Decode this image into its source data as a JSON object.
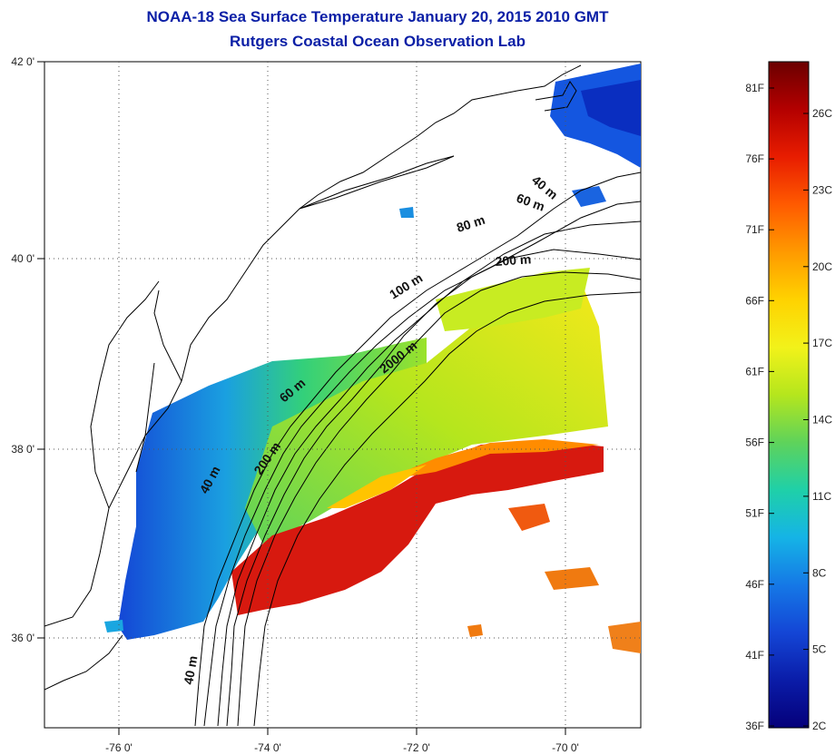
{
  "title": "NOAA-18 Sea Surface Temperature January 20, 2015 2010 GMT",
  "subtitle": "Rutgers Coastal Ocean Observation Lab",
  "axes": {
    "lon_ticks": [
      "-76 0'",
      "-74 0'",
      "-72 0'",
      "-70 0'"
    ],
    "lat_ticks": [
      "42 0'",
      "40 0'",
      "38 0'",
      "36 0'"
    ]
  },
  "depth_contours": [
    {
      "label": "40 m"
    },
    {
      "label": "60 m"
    },
    {
      "label": "80 m"
    },
    {
      "label": "200 m"
    },
    {
      "label": "100 m"
    },
    {
      "label": "2000 m"
    },
    {
      "label": "60 m"
    },
    {
      "label": "200 m"
    },
    {
      "label": "40 m"
    },
    {
      "label": "40 m"
    }
  ],
  "colorbar": {
    "fahrenheit_labels": [
      "81F",
      "76F",
      "71F",
      "66F",
      "61F",
      "56F",
      "51F",
      "46F",
      "41F",
      "36F"
    ],
    "celsius_labels": [
      "26C",
      "23C",
      "20C",
      "17C",
      "14C",
      "11C",
      "8C",
      "5C",
      "2C"
    ],
    "gradient_colors": [
      "#6b0000",
      "#b30000",
      "#e81d00",
      "#ff5a00",
      "#ff9a00",
      "#ffd200",
      "#f2f21a",
      "#b5e61d",
      "#5fd35a",
      "#1fd0a8",
      "#15b4e6",
      "#1578e6",
      "#1446d6",
      "#0a1ca8",
      "#05007a"
    ]
  },
  "colors": {
    "title": "#0b1fa6",
    "warm_eddy": "#d7190f",
    "land_outline": "#000000"
  }
}
